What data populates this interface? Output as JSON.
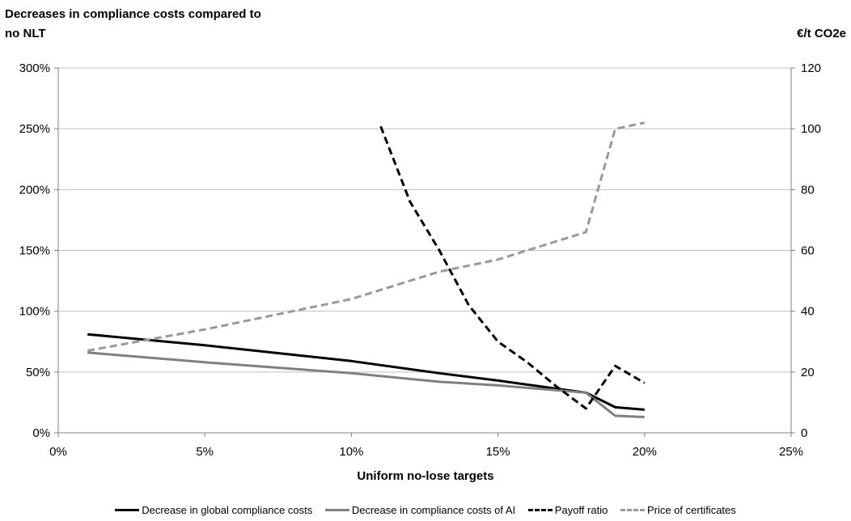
{
  "chart_data": {
    "type": "line",
    "ylabel_left": "Decreases in compliance costs compared to no NLT",
    "ylabel_right": "€/t CO2e",
    "xlabel": "Uniform no-lose targets",
    "x_ticks": [
      "0%",
      "5%",
      "10%",
      "15%",
      "20%",
      "25%"
    ],
    "x_tick_values": [
      0,
      5,
      10,
      15,
      20,
      25
    ],
    "xlim": [
      0,
      25
    ],
    "y_left_ticks": [
      "0%",
      "50%",
      "100%",
      "150%",
      "200%",
      "250%",
      "300%"
    ],
    "y_left_tick_values": [
      0,
      50,
      100,
      150,
      200,
      250,
      300
    ],
    "ylim_left": [
      0,
      300
    ],
    "y_right_ticks": [
      "0",
      "20",
      "40",
      "60",
      "80",
      "100",
      "120"
    ],
    "y_right_tick_values": [
      0,
      20,
      40,
      60,
      80,
      100,
      120
    ],
    "ylim_right": [
      0,
      120
    ],
    "grid": "horizontal",
    "legend_position": "bottom",
    "series": [
      {
        "name": "Decrease in global compliance costs",
        "axis": "left",
        "color": "#000000",
        "dash": "solid",
        "points": [
          [
            1,
            81
          ],
          [
            5,
            72
          ],
          [
            10,
            59
          ],
          [
            13,
            49
          ],
          [
            15,
            43
          ],
          [
            18,
            33
          ],
          [
            19,
            21
          ],
          [
            20,
            19
          ]
        ]
      },
      {
        "name": "Decrease in compliance costs of AI",
        "axis": "left",
        "color": "#808080",
        "dash": "solid",
        "points": [
          [
            1,
            66
          ],
          [
            5,
            58
          ],
          [
            10,
            49
          ],
          [
            13,
            42
          ],
          [
            15,
            39
          ],
          [
            17,
            35
          ],
          [
            18,
            33
          ],
          [
            19,
            14
          ],
          [
            20,
            13
          ]
        ]
      },
      {
        "name": "Payoff ratio",
        "axis": "left",
        "color": "#000000",
        "dash": "dashed",
        "points": [
          [
            11,
            252
          ],
          [
            12,
            190
          ],
          [
            13,
            150
          ],
          [
            14,
            105
          ],
          [
            15,
            75
          ],
          [
            16,
            58
          ],
          [
            17,
            38
          ],
          [
            18,
            20
          ],
          [
            19,
            55
          ],
          [
            20,
            41
          ]
        ]
      },
      {
        "name": "Price of certificates",
        "axis": "right",
        "color": "#999999",
        "dash": "dashed",
        "points": [
          [
            1,
            27
          ],
          [
            5,
            34
          ],
          [
            10,
            44
          ],
          [
            13,
            53
          ],
          [
            15,
            57
          ],
          [
            18,
            66
          ],
          [
            19,
            100
          ],
          [
            20,
            102
          ]
        ]
      }
    ]
  }
}
